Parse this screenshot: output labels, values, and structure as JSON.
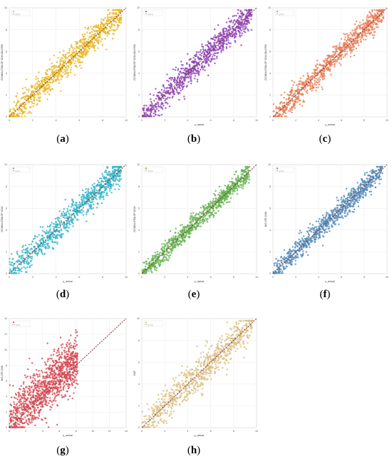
{
  "figure": {
    "panels": [
      {
        "id": "a",
        "caption_letter": "a",
        "ylabel": "GCNBiLSTM-GP-CNN-BiLSTM",
        "xlabel": "",
        "color": "#f2bf2f",
        "edge": "#d9a400",
        "xlim": [
          0,
          10
        ],
        "ylim": [
          0,
          10
        ],
        "xticks": [
          "0",
          "2",
          "4",
          "6",
          "8",
          "10"
        ],
        "yticks": [
          "0",
          "2",
          "4",
          "6",
          "8",
          "10"
        ],
        "legend": [
          "",
          "y = x"
        ],
        "band": 1.1,
        "n": 900,
        "xmax": 9.6
      },
      {
        "id": "b",
        "caption_letter": "b",
        "ylabel": "GCNBiLSTM-GP-CNN-BiLSTM",
        "xlabel": "y_actual",
        "color": "#9b4fc0",
        "edge": "#7a2fa0",
        "xlim": [
          0,
          10
        ],
        "ylim": [
          0,
          10
        ],
        "xticks": [
          "0",
          "2",
          "4",
          "6",
          "8",
          "10"
        ],
        "yticks": [
          "0",
          "2",
          "4",
          "6",
          "8",
          "10"
        ],
        "legend": [
          "",
          "y = x"
        ],
        "band": 1.2,
        "n": 900,
        "xmax": 9.6
      },
      {
        "id": "c",
        "caption_letter": "c",
        "ylabel": "GCNBiLSTM-GP-CNN-BiLSTM",
        "xlabel": "y_actual",
        "color": "#f08a64",
        "edge": "#d96a40",
        "xlim": [
          0,
          10
        ],
        "ylim": [
          0,
          10
        ],
        "xticks": [
          "0",
          "2",
          "4",
          "6",
          "8",
          "10"
        ],
        "yticks": [
          "0",
          "2",
          "4",
          "6",
          "8",
          "10"
        ],
        "legend": [
          "",
          "y = x"
        ],
        "band": 1.0,
        "n": 900,
        "xmax": 9.7
      },
      {
        "id": "d",
        "caption_letter": "d",
        "ylabel": "GCNBiLSTM-GP-CNN",
        "xlabel": "y_actual",
        "color": "#3fbfd4",
        "edge": "#1f9fb4",
        "xlim": [
          0,
          10
        ],
        "ylim": [
          0,
          10
        ],
        "xticks": [
          "0",
          "2",
          "4",
          "6",
          "8",
          "10"
        ],
        "yticks": [
          "0",
          "2",
          "4",
          "6",
          "8",
          "10"
        ],
        "legend": [
          "",
          "y = x"
        ],
        "band": 1.1,
        "n": 900,
        "xmax": 9.6
      },
      {
        "id": "e",
        "caption_letter": "e",
        "ylabel": "GCNBiLSTM-GP-CNN",
        "xlabel": "y_actual",
        "color": "#6fbd5a",
        "edge": "#4f9d3a",
        "xlim": [
          0,
          10
        ],
        "ylim": [
          0,
          10
        ],
        "xticks": [
          "0",
          "2",
          "4",
          "6",
          "8",
          "10"
        ],
        "yticks": [
          "0",
          "2",
          "4",
          "6",
          "8",
          "10"
        ],
        "legend": [
          "",
          "y = x"
        ],
        "band": 0.8,
        "n": 900,
        "xmax": 9.4
      },
      {
        "id": "f",
        "caption_letter": "f",
        "ylabel": "BiG-GP-CNN",
        "xlabel": "y_actual",
        "color": "#5f97c4",
        "edge": "#3f77a4",
        "xlim": [
          0,
          10
        ],
        "ylim": [
          0,
          10
        ],
        "xticks": [
          "0",
          "2",
          "4",
          "6",
          "8",
          "10"
        ],
        "yticks": [
          "0",
          "2",
          "4",
          "6",
          "8",
          "10"
        ],
        "legend": [
          "",
          "y = x"
        ],
        "band": 0.9,
        "n": 900,
        "xmax": 9.6
      },
      {
        "id": "g",
        "caption_letter": "g",
        "ylabel": "BiG-GP-CNN",
        "xlabel": "y_actual",
        "color": "#e2555e",
        "edge": "#c2353e",
        "xlim": [
          0,
          14
        ],
        "ylim": [
          0,
          14
        ],
        "xticks": [
          "0",
          "2",
          "4",
          "6",
          "8",
          "10",
          "12",
          "14"
        ],
        "yticks": [
          "0",
          "2",
          "4",
          "6",
          "8",
          "10",
          "12",
          "14"
        ],
        "legend": [
          "",
          "y = x"
        ],
        "band": 2.2,
        "n": 1100,
        "xmax": 8.2
      },
      {
        "id": "h",
        "caption_letter": "h",
        "ylabel": "GAT",
        "xlabel": "y_actual",
        "color": "#e6c98c",
        "edge": "#c6a96c",
        "xlim": [
          0,
          10
        ],
        "ylim": [
          0,
          10
        ],
        "xticks": [
          "0",
          "2",
          "4",
          "6",
          "8",
          "10"
        ],
        "yticks": [
          "0",
          "2",
          "4",
          "6",
          "8",
          "10"
        ],
        "legend": [
          "",
          "y = x"
        ],
        "band": 1.4,
        "n": 800,
        "xmax": 9.7
      }
    ]
  },
  "chart_data": [
    {
      "type": "scatter",
      "panel": "a",
      "relation": "predicted vs actual",
      "xlim": [
        0,
        10
      ],
      "ylim": [
        0,
        10
      ],
      "reference_line": "y = x",
      "grid": true,
      "legend_position": "top-left"
    },
    {
      "type": "scatter",
      "panel": "b",
      "relation": "predicted vs actual",
      "xlim": [
        0,
        10
      ],
      "ylim": [
        0,
        10
      ],
      "reference_line": "y = x",
      "grid": true,
      "legend_position": "top-left"
    },
    {
      "type": "scatter",
      "panel": "c",
      "relation": "predicted vs actual",
      "xlim": [
        0,
        10
      ],
      "ylim": [
        0,
        10
      ],
      "reference_line": "y = x",
      "grid": true,
      "legend_position": "top-left"
    },
    {
      "type": "scatter",
      "panel": "d",
      "relation": "predicted vs actual",
      "xlim": [
        0,
        10
      ],
      "ylim": [
        0,
        10
      ],
      "reference_line": "y = x",
      "grid": true,
      "legend_position": "top-left"
    },
    {
      "type": "scatter",
      "panel": "e",
      "relation": "predicted vs actual",
      "xlim": [
        0,
        10
      ],
      "ylim": [
        0,
        10
      ],
      "reference_line": "y = x",
      "grid": true,
      "legend_position": "top-left"
    },
    {
      "type": "scatter",
      "panel": "f",
      "relation": "predicted vs actual",
      "xlim": [
        0,
        10
      ],
      "ylim": [
        0,
        10
      ],
      "reference_line": "y = x",
      "grid": true,
      "legend_position": "top-left"
    },
    {
      "type": "scatter",
      "panel": "g",
      "relation": "predicted vs actual",
      "xlim": [
        0,
        14
      ],
      "ylim": [
        0,
        14
      ],
      "reference_line": "y = x",
      "grid": true,
      "legend_position": "top-left"
    },
    {
      "type": "scatter",
      "panel": "h",
      "relation": "predicted vs actual",
      "xlim": [
        0,
        10
      ],
      "ylim": [
        0,
        10
      ],
      "reference_line": "y = x",
      "grid": true,
      "legend_position": "top-left"
    }
  ]
}
